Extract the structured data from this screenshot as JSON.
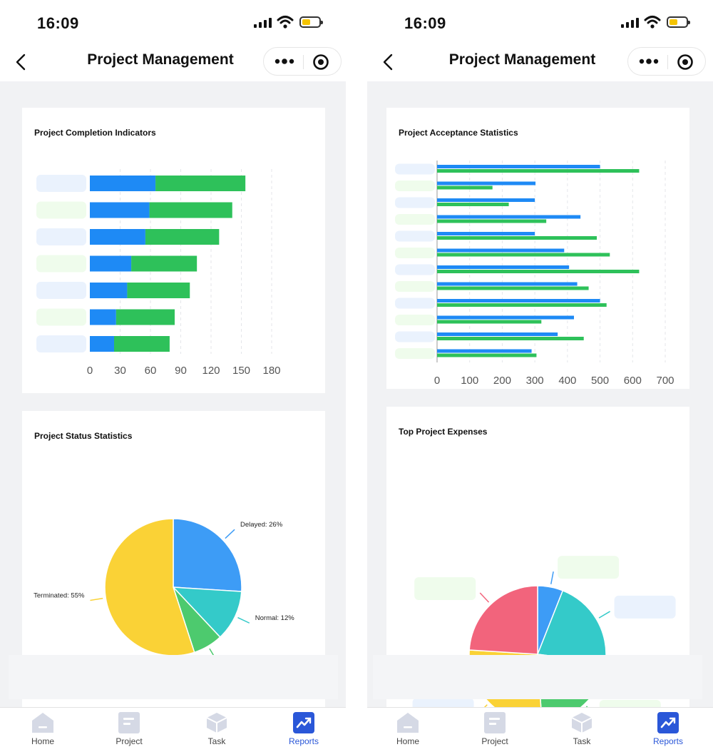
{
  "status_bar": {
    "time": "16:09"
  },
  "header": {
    "title": "Project Management"
  },
  "colors": {
    "blue": "#1e8af5",
    "green": "#2ec15a",
    "active_tab": "#2a57d8",
    "label_blue": "#eaf2fd",
    "label_green": "#effcec"
  },
  "tabs": [
    {
      "label": "Home",
      "icon": "home-icon"
    },
    {
      "label": "Project",
      "icon": "document-icon"
    },
    {
      "label": "Task",
      "icon": "cube-icon"
    },
    {
      "label": "Reports",
      "icon": "chart-trend-icon"
    }
  ],
  "left": {
    "completion": {
      "title": "Project Completion Indicators"
    },
    "status": {
      "title": "Project Status Statistics"
    }
  },
  "right": {
    "acceptance": {
      "title": "Project Acceptance Statistics"
    },
    "expenses": {
      "title": "Top Project Expenses"
    }
  },
  "chart_data": [
    {
      "id": "completion",
      "type": "bar",
      "orientation": "horizontal",
      "stacked": true,
      "title": "Project Completion Indicators",
      "categories": [
        "",
        "",
        "",
        "",
        "",
        "",
        ""
      ],
      "series": [
        {
          "values": [
            65,
            59,
            55,
            41,
            37,
            26,
            24
          ]
        },
        {
          "values": [
            89,
            82,
            73,
            65,
            62,
            58,
            55
          ]
        }
      ],
      "xlim": [
        0,
        180
      ],
      "xticks": [
        "0",
        "30",
        "60",
        "90",
        "120",
        "150",
        "180"
      ],
      "grid": true
    },
    {
      "id": "acceptance",
      "type": "bar",
      "orientation": "horizontal",
      "title": "Project Acceptance Statistics",
      "categories": [
        "",
        "",
        "",
        "",
        "",
        "",
        "",
        "",
        "",
        "",
        "",
        ""
      ],
      "series": [
        {
          "values": [
            500,
            302,
            300,
            440,
            300,
            390,
            405,
            430,
            500,
            420,
            370,
            290
          ]
        },
        {
          "values": [
            620,
            170,
            220,
            335,
            490,
            530,
            620,
            465,
            520,
            320,
            450,
            305
          ]
        }
      ],
      "xlim": [
        0,
        700
      ],
      "xticks": [
        "0",
        "100",
        "200",
        "300",
        "400",
        "500",
        "600",
        "700"
      ],
      "grid": true
    },
    {
      "id": "status",
      "type": "pie",
      "title": "Project Status Statistics",
      "slices": [
        {
          "label": "Delayed: 26%",
          "value": 26,
          "color": "#3d9cf6"
        },
        {
          "label": "Normal: 12%",
          "value": 12,
          "color": "#34cac9"
        },
        {
          "label": "",
          "value": 7,
          "color": "#4dca6e"
        },
        {
          "label": "Terminated: 55%",
          "value": 55,
          "color": "#fad236"
        }
      ]
    },
    {
      "id": "expenses",
      "type": "pie",
      "title": "Top Project Expenses",
      "slices": [
        {
          "label": "",
          "value": 6,
          "color": "#3d9cf6"
        },
        {
          "label": "",
          "value": 21,
          "color": "#34cac9"
        },
        {
          "label": "",
          "value": 22,
          "color": "#4dca6e"
        },
        {
          "label": "",
          "value": 27,
          "color": "#fad236"
        },
        {
          "label": "",
          "value": 24,
          "color": "#f2647c"
        }
      ]
    }
  ]
}
